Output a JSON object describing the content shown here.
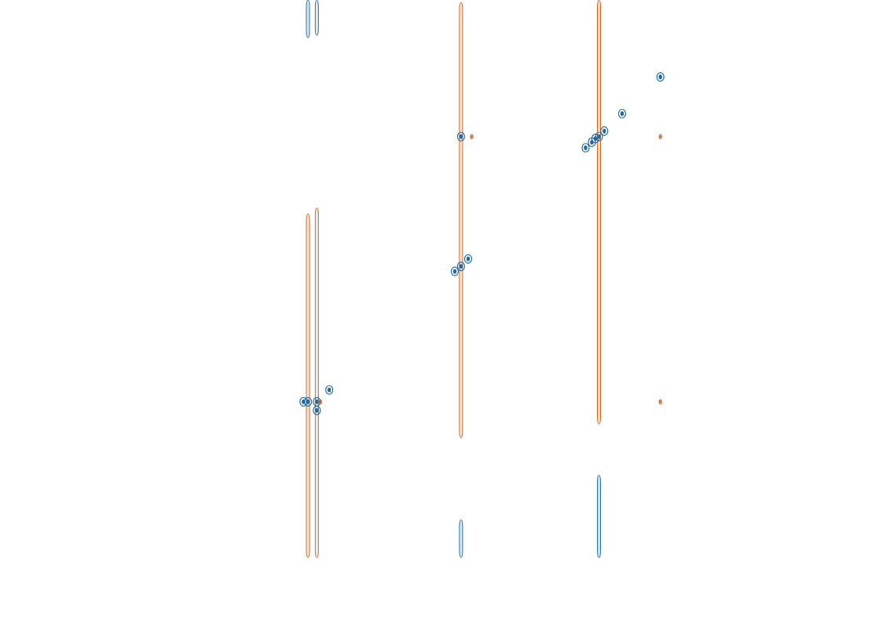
{
  "chart_data": {
    "type": "contour",
    "tick_labels": false,
    "grid": false,
    "xlim": [
      0,
      100
    ],
    "ylim": [
      100,
      0
    ],
    "series": [
      {
        "type": "streak",
        "color": "#c8641e",
        "x": [
          34.6,
          35.6,
          51.8,
          67.3
        ],
        "y_start": [
          34.4,
          33.5,
          0.4,
          0.0
        ],
        "y_end": [
          89.8,
          89.8,
          70.5,
          68.3
        ]
      },
      {
        "type": "streak",
        "color": "#1f6aa5",
        "x": [
          34.6,
          35.6,
          51.8,
          67.3
        ],
        "y_start": [
          0.0,
          0.0,
          83.7,
          76.5
        ],
        "y_end": [
          6.1,
          5.7,
          89.8,
          89.8
        ]
      },
      {
        "type": "peak",
        "color": "#1f6aa5",
        "x": [
          34.6,
          35.6,
          35.6,
          34.1,
          37.0,
          51.8,
          51.8,
          51.1,
          52.6,
          67.3,
          66.9,
          67.9,
          65.8,
          66.5,
          69.9,
          74.2
        ],
        "values": [
          64.7,
          64.7,
          66.1,
          64.7,
          62.8,
          22.0,
          42.9,
          43.7,
          41.7,
          22.0,
          22.3,
          21.1,
          23.8,
          22.9,
          18.3,
          12.4
        ]
      },
      {
        "type": "peak",
        "color": "#c8641e",
        "x": [
          74.2,
          74.2,
          53.0,
          36.0
        ],
        "values": [
          22.0,
          64.7,
          22.0,
          64.7
        ]
      }
    ]
  }
}
